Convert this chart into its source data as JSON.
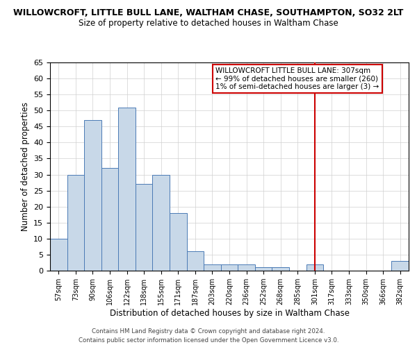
{
  "title": "WILLOWCROFT, LITTLE BULL LANE, WALTHAM CHASE, SOUTHAMPTON, SO32 2LT",
  "subtitle": "Size of property relative to detached houses in Waltham Chase",
  "xlabel": "Distribution of detached houses by size in Waltham Chase",
  "ylabel": "Number of detached properties",
  "bin_labels": [
    "57sqm",
    "73sqm",
    "90sqm",
    "106sqm",
    "122sqm",
    "138sqm",
    "155sqm",
    "171sqm",
    "187sqm",
    "203sqm",
    "220sqm",
    "236sqm",
    "252sqm",
    "268sqm",
    "285sqm",
    "301sqm",
    "317sqm",
    "333sqm",
    "350sqm",
    "366sqm",
    "382sqm"
  ],
  "bar_heights": [
    10,
    30,
    47,
    32,
    51,
    27,
    30,
    18,
    6,
    2,
    2,
    2,
    1,
    1,
    0,
    2,
    0,
    0,
    0,
    0,
    3
  ],
  "bar_color": "#c8d8e8",
  "bar_edge_color": "#4a7ab5",
  "ylim": [
    0,
    65
  ],
  "yticks": [
    0,
    5,
    10,
    15,
    20,
    25,
    30,
    35,
    40,
    45,
    50,
    55,
    60,
    65
  ],
  "vline_x": 15,
  "vline_color": "#cc0000",
  "annotation_title": "WILLOWCROFT LITTLE BULL LANE: 307sqm",
  "annotation_line1": "← 99% of detached houses are smaller (260)",
  "annotation_line2": "1% of semi-detached houses are larger (3) →",
  "annotation_box_color": "#ffffff",
  "annotation_box_edge": "#cc0000",
  "footer1": "Contains HM Land Registry data © Crown copyright and database right 2024.",
  "footer2": "Contains public sector information licensed under the Open Government Licence v3.0.",
  "background_color": "#ffffff",
  "grid_color": "#d0d0d0"
}
